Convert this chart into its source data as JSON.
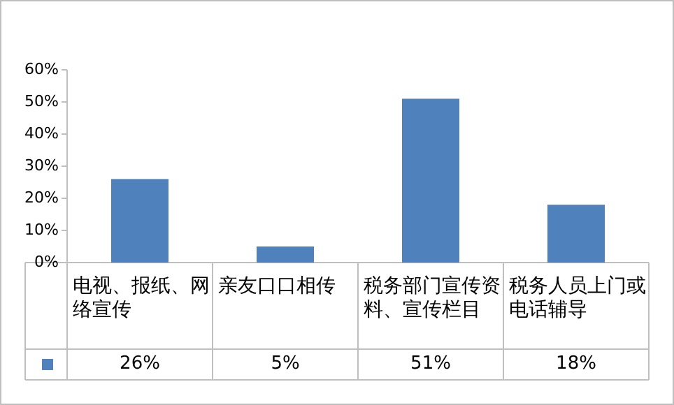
{
  "chart_data": {
    "type": "bar",
    "categories": [
      "电视、报纸、网络宣传",
      "亲友口口相传",
      "税务部门宣传资料、宣传栏目",
      "税务人员上门或电话辅导"
    ],
    "series": [
      {
        "color": "#4f81bd",
        "values": [
          26,
          5,
          51,
          18
        ]
      }
    ],
    "ylim": [
      0,
      60
    ],
    "yticks": [
      {
        "value": 0,
        "label": "0%"
      },
      {
        "value": 10,
        "label": "10%"
      },
      {
        "value": 20,
        "label": "20%"
      },
      {
        "value": 30,
        "label": "30%"
      },
      {
        "value": 40,
        "label": "40%"
      },
      {
        "value": 50,
        "label": "50%"
      },
      {
        "value": 60,
        "label": "60%"
      }
    ],
    "value_labels": [
      "26%",
      "5%",
      "51%",
      "18%"
    ]
  }
}
